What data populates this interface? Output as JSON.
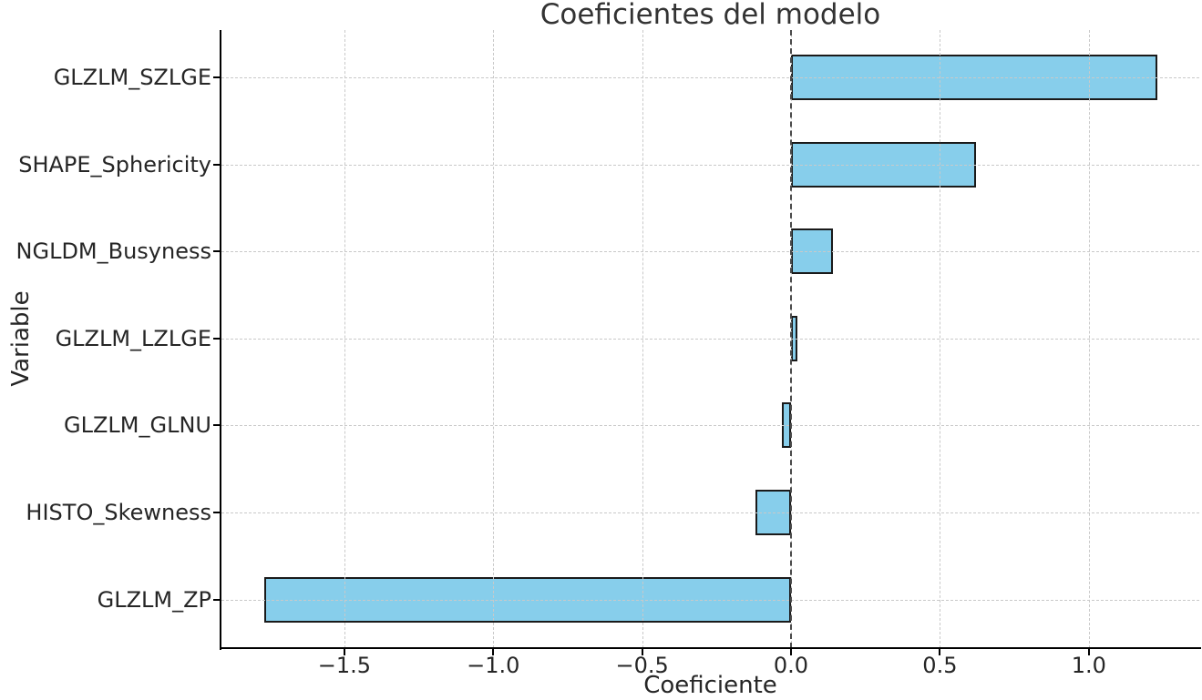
{
  "chart_data": {
    "type": "bar",
    "orientation": "horizontal",
    "title": "Coeficientes del modelo",
    "xlabel": "Coeficiente",
    "ylabel": "Variable",
    "categories": [
      "GLZLM_SZLGE",
      "SHAPE_Sphericity",
      "NGLDM_Busyness",
      "GLZLM_LZLGE",
      "GLZLM_GLNU",
      "HISTO_Skewness",
      "GLZLM_ZP"
    ],
    "values": [
      1.23,
      0.62,
      0.14,
      0.02,
      -0.03,
      -0.12,
      -1.77
    ],
    "xlim": [
      -1.913,
      1.371
    ],
    "xticks": [
      -1.5,
      -1.0,
      -0.5,
      0.0,
      0.5,
      1.0
    ],
    "xtick_labels": [
      "−1.5",
      "−1.0",
      "−0.5",
      "0.0",
      "0.5",
      "1.0"
    ],
    "grid": true,
    "grid_style": "dashed",
    "legend_position": "none",
    "colors": {
      "bar_fill": "#87CEEB",
      "bar_edge": "#1a1a1a",
      "gridline": "#c9c9c9",
      "zero_line": "#4a4a4a",
      "axis": "#000000",
      "text": "#262626"
    }
  }
}
